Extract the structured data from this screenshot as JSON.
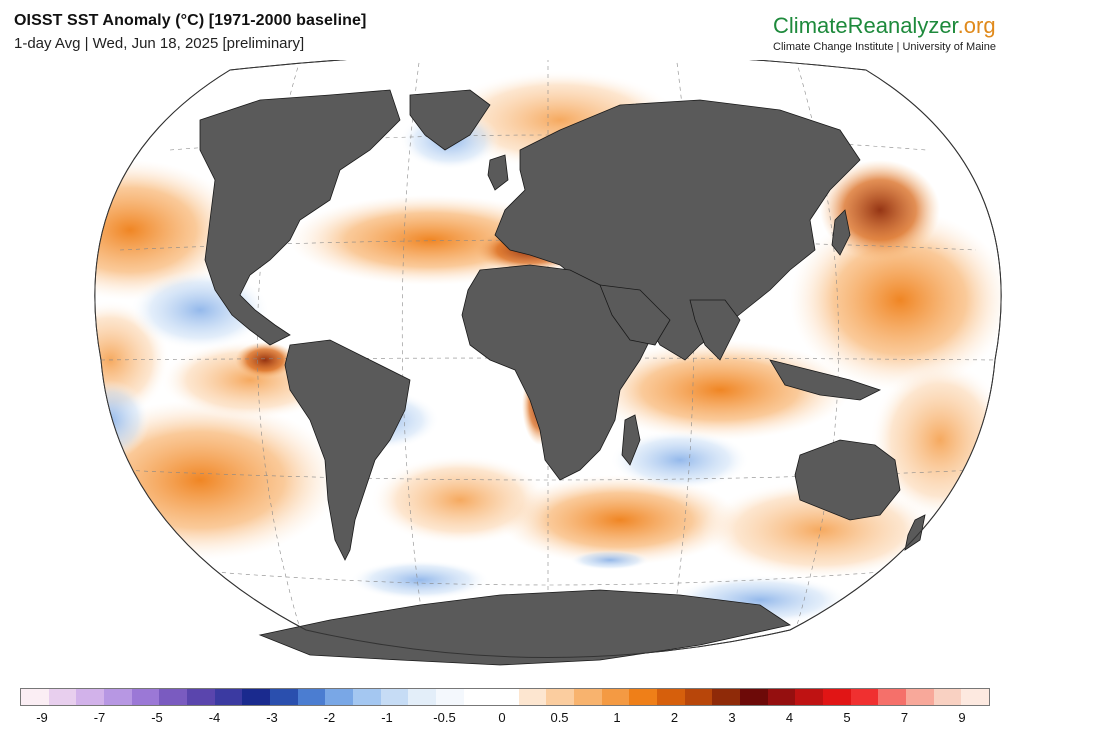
{
  "header": {
    "title": "OISST SST Anomaly (°C) [1971-2000 baseline]",
    "subtitle": "1-day Avg | Wed, Jun 18, 2025 [preliminary]"
  },
  "brand": {
    "name_main": "ClimateReanalyzer",
    "name_tld": ".org",
    "affiliation": "Climate Change Institute | University of Maine",
    "color_main": "#1e8a3c",
    "color_tld": "#e08a1c"
  },
  "map": {
    "projection": "Winkel Tripel",
    "land_color": "#5a5a5a",
    "ocean_base_color": "#ffffff"
  },
  "legend": {
    "colors": [
      "#fbeef4",
      "#e8cfee",
      "#d2b2ea",
      "#b797e3",
      "#9b78d6",
      "#7a5bc0",
      "#5a45ad",
      "#3b3aa1",
      "#1a2a8e",
      "#2a4fae",
      "#4b7dd1",
      "#79a7e6",
      "#a4c7f1",
      "#c6dcf5",
      "#e3eef9",
      "#f4f8fd",
      "#ffffff",
      "#ffffff",
      "#fde6d0",
      "#fbcd9f",
      "#f8b36e",
      "#f49a43",
      "#ef7f18",
      "#d65f0c",
      "#b8460a",
      "#8f2a08",
      "#6d0a08",
      "#950f0f",
      "#bf1212",
      "#e11515",
      "#f03030",
      "#f5706a",
      "#f8a89a",
      "#f9d1c2",
      "#fde9e0"
    ],
    "tick_labels": [
      "-9",
      "-7",
      "-5",
      "-4",
      "-3",
      "-2",
      "-1",
      "-0.5",
      "0",
      "0.5",
      "1",
      "2",
      "3",
      "4",
      "5",
      "7",
      "9"
    ],
    "tick_values": [
      -9,
      -7,
      -5,
      -4,
      -3,
      -2,
      -1,
      -0.5,
      0,
      0.5,
      1,
      2,
      3,
      4,
      5,
      7,
      9
    ]
  }
}
